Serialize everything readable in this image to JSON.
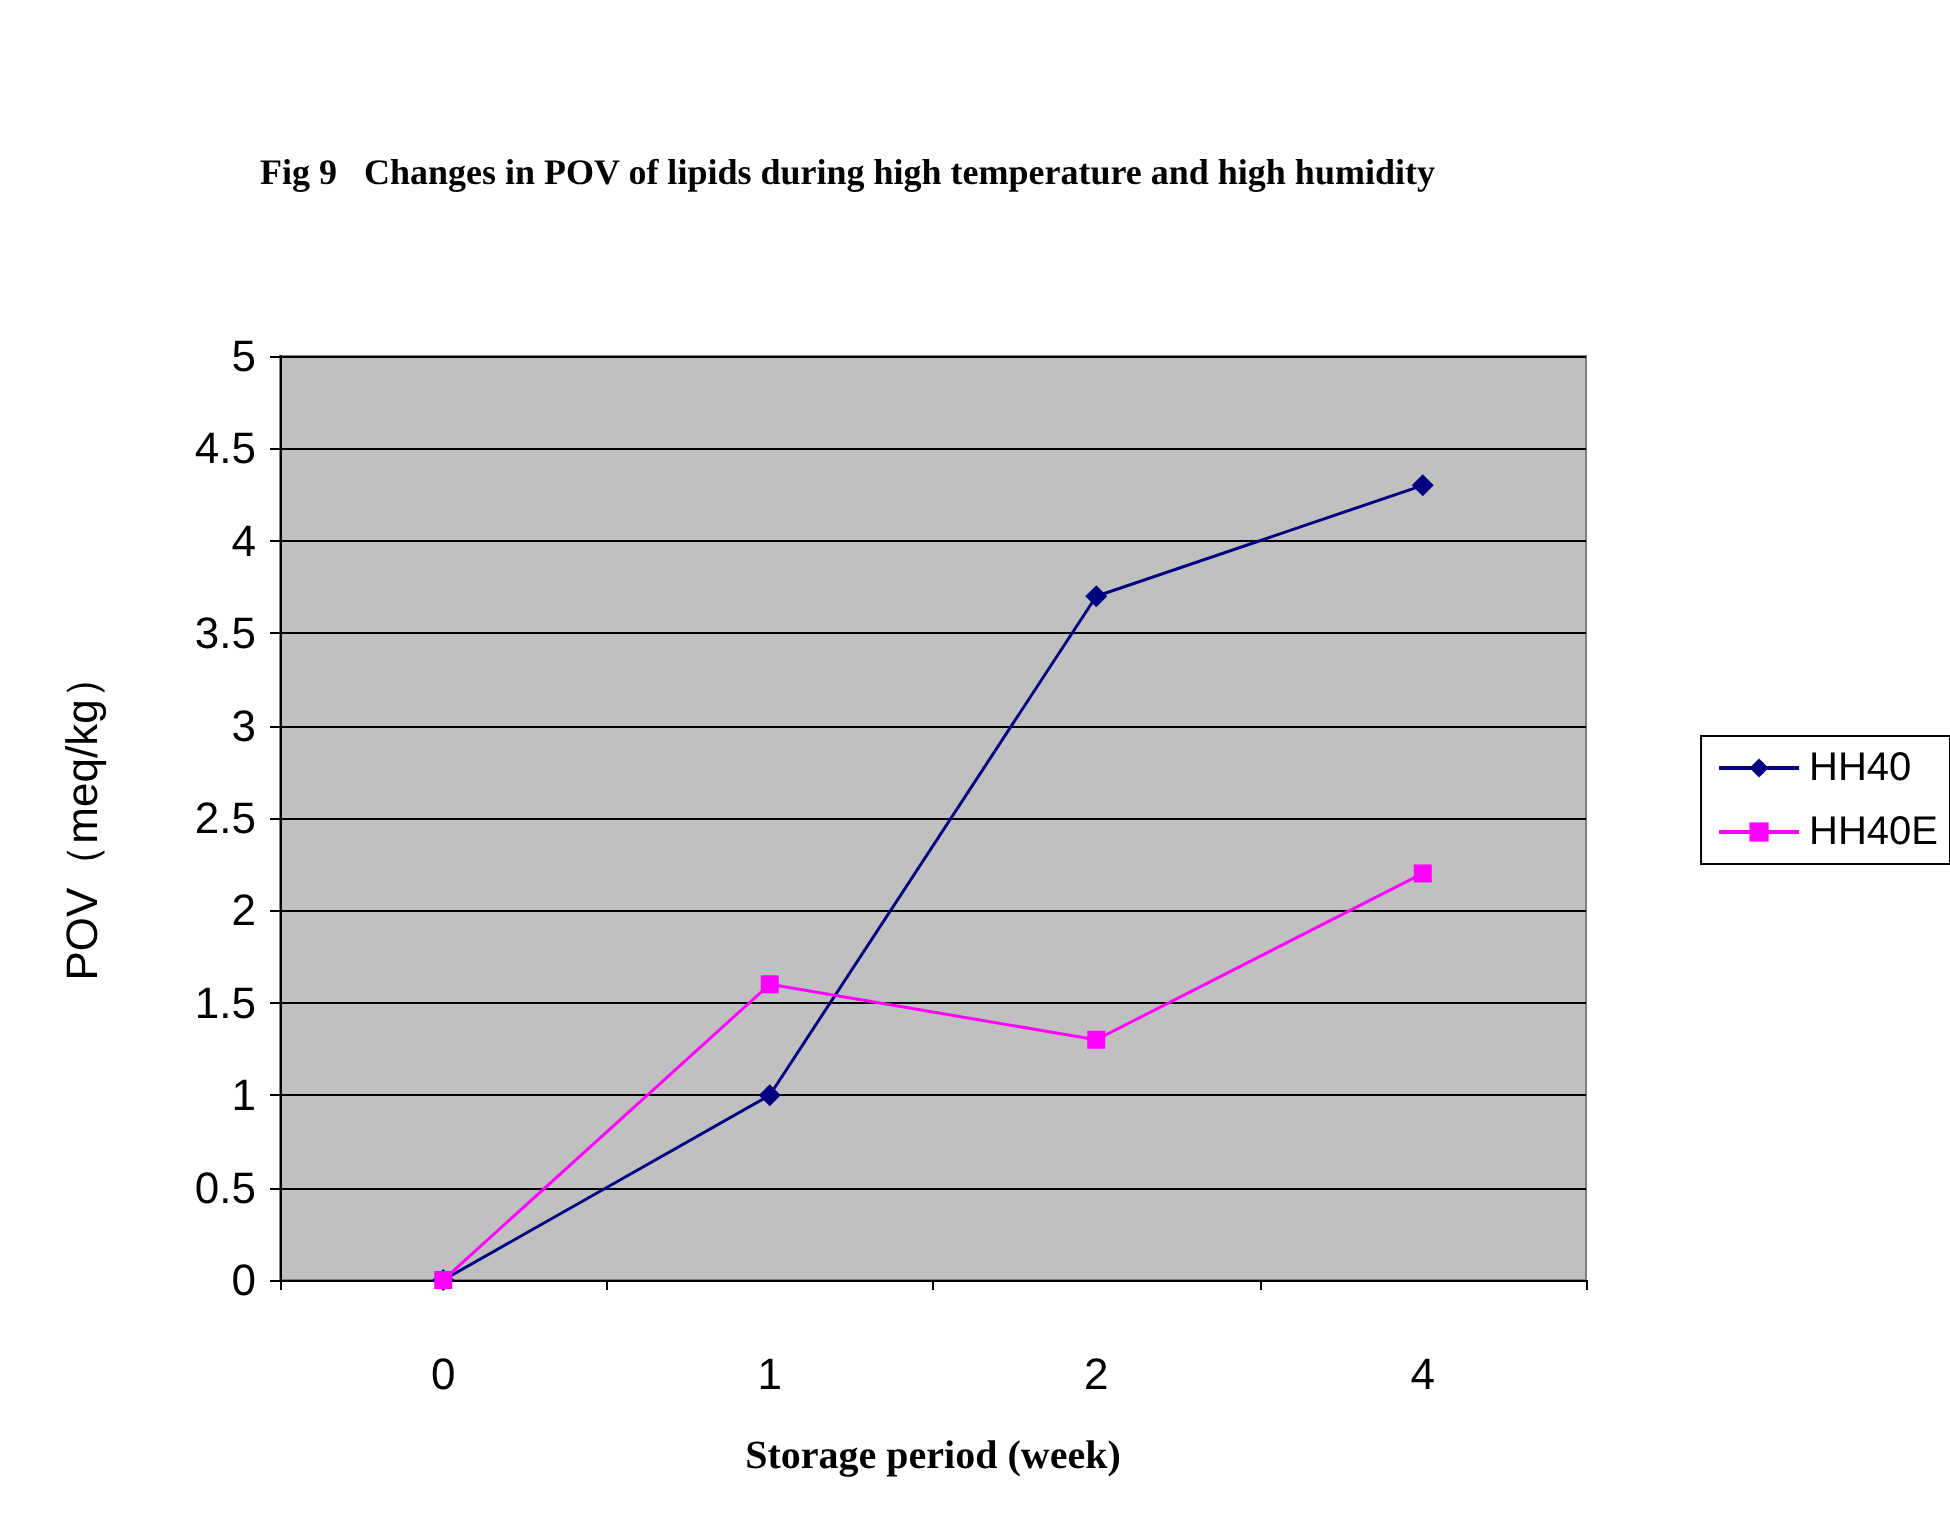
{
  "chart_data": {
    "type": "line",
    "title": "Fig 9   Changes in POV of lipids during high temperature and high humidity",
    "xlabel": "Storage period (week)",
    "ylabel": "POV（meq/kg）",
    "categories": [
      "0",
      "1",
      "2",
      "4"
    ],
    "series": [
      {
        "name": "HH40",
        "color": "#000080",
        "marker": "diamond",
        "values": [
          0,
          1,
          3.7,
          4.3
        ]
      },
      {
        "name": "HH40E",
        "color": "#ff00ff",
        "marker": "square",
        "values": [
          0,
          1.6,
          1.3,
          2.2
        ]
      }
    ],
    "ylim": [
      0,
      5
    ],
    "yticks": [
      0,
      0.5,
      1,
      1.5,
      2,
      2.5,
      3,
      3.5,
      4,
      4.5,
      5
    ],
    "grid": "y",
    "legend": "right"
  }
}
